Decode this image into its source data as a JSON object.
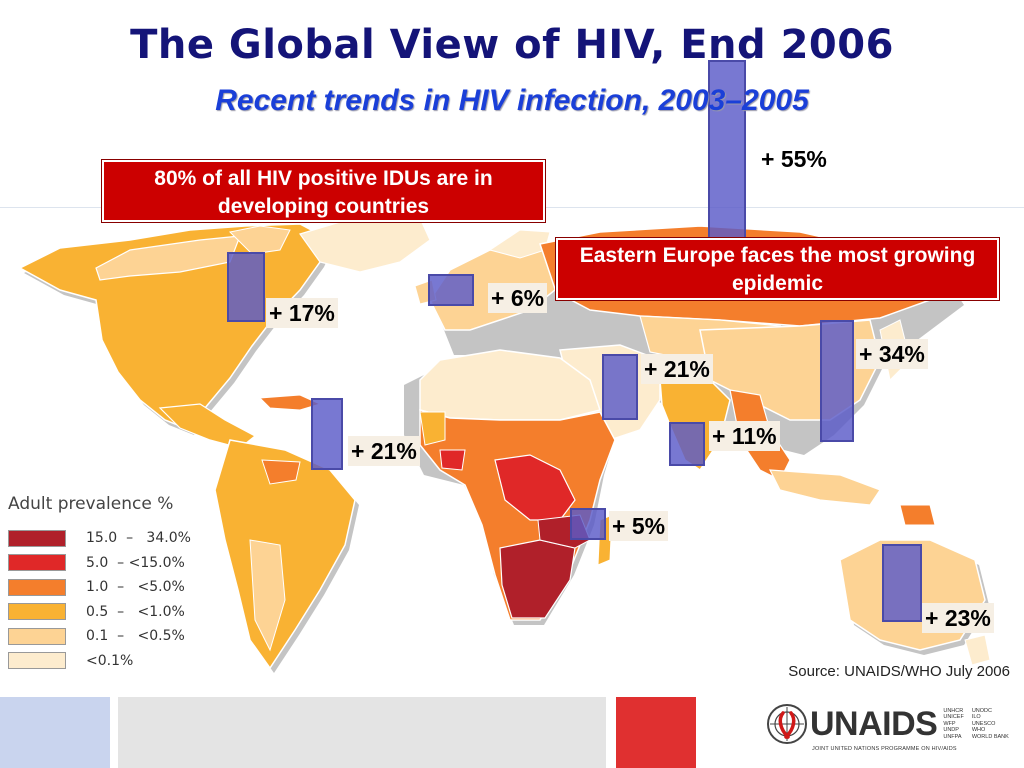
{
  "header": {
    "title": "The Global View of HIV, End 2006",
    "subtitle": "Recent trends in HIV infection, 2003–2005"
  },
  "callouts": {
    "idu": "80% of all HIV positive IDUs are in developing countries",
    "eastern_europe": "Eastern Europe faces the most growing epidemic"
  },
  "trends": [
    {
      "region": "North America",
      "label": "+ 17%",
      "value": 17
    },
    {
      "region": "Western Europe",
      "label": "+ 6%",
      "value": 6
    },
    {
      "region": "Eastern Europe & Central Asia",
      "label": "+ 55%",
      "value": 55
    },
    {
      "region": "East Asia",
      "label": "+ 34%",
      "value": 34
    },
    {
      "region": "North Africa & Middle East",
      "label": "+ 21%",
      "value": 21
    },
    {
      "region": "South & South-East Asia",
      "label": "+ 11%",
      "value": 11
    },
    {
      "region": "Latin America",
      "label": "+ 21%",
      "value": 21
    },
    {
      "region": "Sub-Saharan Africa",
      "label": "+ 5%",
      "value": 5
    },
    {
      "region": "Oceania",
      "label": "+ 23%",
      "value": 23
    }
  ],
  "legend": {
    "title": "Adult prevalence %",
    "items": [
      {
        "range": "15.0  –   34.0%",
        "color": "#b0202a"
      },
      {
        "range": "5.0  – <15.0%",
        "color": "#e02828"
      },
      {
        "range": "1.0  –   <5.0%",
        "color": "#f47e2c"
      },
      {
        "range": "0.5  –   <1.0%",
        "color": "#f9b233"
      },
      {
        "range": "0.1  –   <0.5%",
        "color": "#fdd394"
      },
      {
        "range": "<0.1%",
        "color": "#fdecce"
      }
    ]
  },
  "source": "Source: UNAIDS/WHO July 2006",
  "logo": {
    "name": "UNAIDS",
    "cosponsors": [
      "UNHCR",
      "UNODC",
      "UNICEF",
      "ILO",
      "WFP",
      "UNESCO",
      "UNDP",
      "WHO",
      "UNFPA",
      "WORLD BANK"
    ],
    "tagline": "JOINT UNITED NATIONS PROGRAMME ON HIV/AIDS"
  },
  "colors": {
    "title": "#141478",
    "subtitle": "#1a3fd8",
    "callout_bg": "#cc0000",
    "bar_fill": "#5a5ac8"
  }
}
